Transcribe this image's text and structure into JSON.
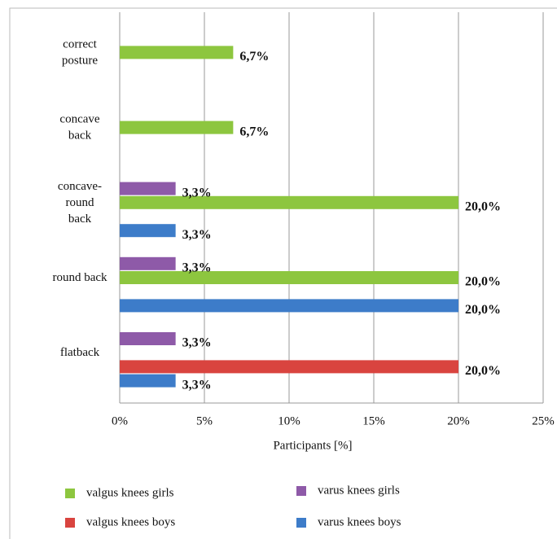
{
  "chart_data": {
    "type": "bar",
    "orientation": "horizontal",
    "categories": [
      [
        "correct",
        "posture"
      ],
      [
        "concave",
        "back"
      ],
      [
        "concave-",
        "round",
        "back"
      ],
      [
        "round back"
      ],
      [
        "flatback"
      ]
    ],
    "series": [
      {
        "name": "valgus knees girls",
        "color": "#8dc63f",
        "values": [
          6.7,
          6.7,
          20.0,
          20.0,
          null
        ],
        "value_labels": [
          "6,7%",
          "6,7%",
          "20,0%",
          "20,0%",
          null
        ]
      },
      {
        "name": "varus knees girls",
        "color": "#8e5aa8",
        "values": [
          null,
          null,
          3.3,
          3.3,
          3.3
        ],
        "value_labels": [
          null,
          null,
          "3,3%",
          "3,3%",
          "3,3%"
        ]
      },
      {
        "name": "valgus knees boys",
        "color": "#d9443f",
        "values": [
          null,
          null,
          null,
          null,
          20.0
        ],
        "value_labels": [
          null,
          null,
          null,
          null,
          "20,0%"
        ]
      },
      {
        "name": "varus knees boys",
        "color": "#3d7cc9",
        "values": [
          null,
          null,
          3.3,
          20.0,
          3.3
        ],
        "value_labels": [
          null,
          null,
          "3,3%",
          "20,0%",
          "3,3%"
        ]
      }
    ],
    "xlabel": "Participants [%]",
    "xlim": [
      0,
      25
    ],
    "xticks": [
      {
        "value": 0,
        "label": "0%"
      },
      {
        "value": 5,
        "label": "5%"
      },
      {
        "value": 10,
        "label": "10%"
      },
      {
        "value": 15,
        "label": "15%"
      },
      {
        "value": 20,
        "label": "20%"
      },
      {
        "value": 25,
        "label": "25%"
      }
    ],
    "grid": true,
    "legend": "bottom"
  }
}
